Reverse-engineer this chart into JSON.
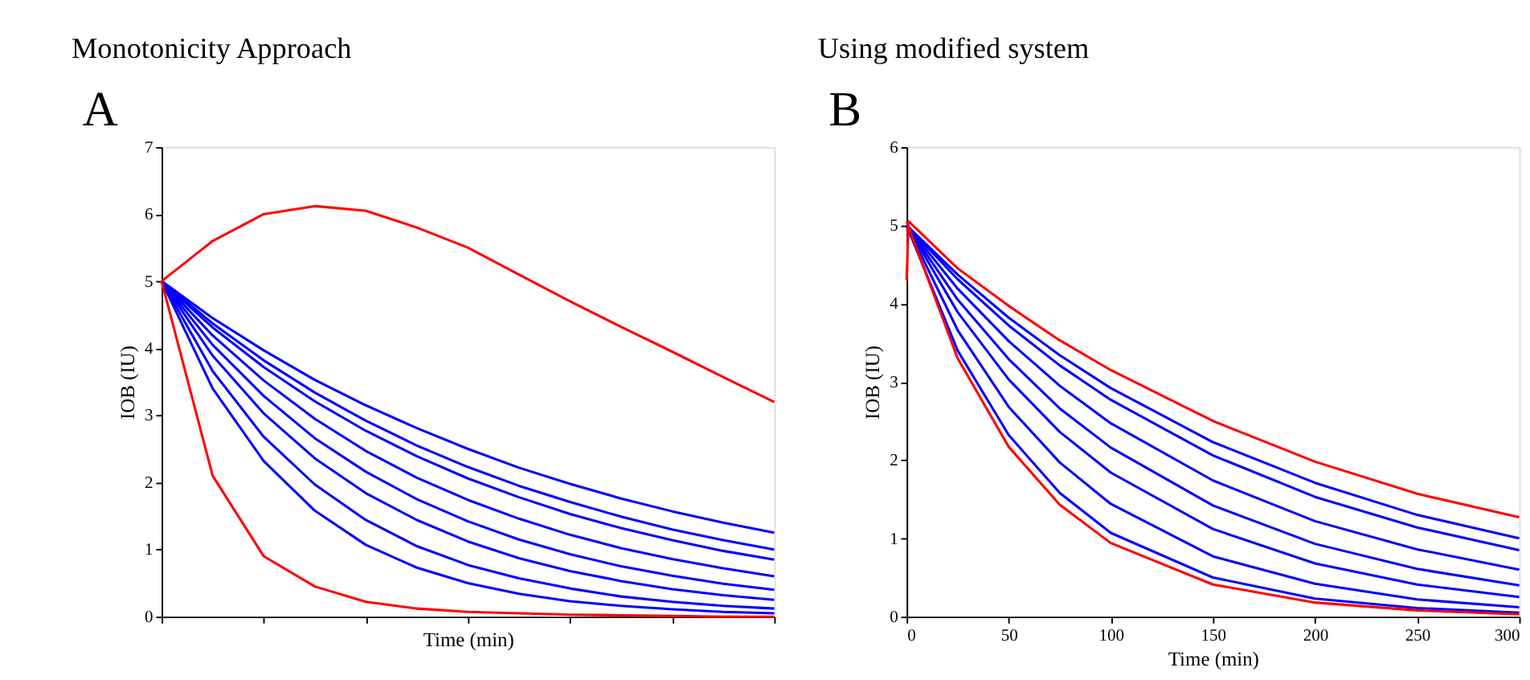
{
  "chart_data": [
    {
      "type": "line",
      "title": "Monotonicity Approach",
      "annotations": [
        "A"
      ],
      "xlabel": "Time (min)",
      "ylabel": "IOB (IU)",
      "categories": [
        null,
        null,
        null,
        null,
        null,
        null,
        null,
        null,
        null,
        null,
        null,
        null,
        null
      ],
      "ylim": [
        0,
        7
      ],
      "yticks": [
        0,
        1,
        2,
        3,
        4,
        5,
        6,
        7
      ],
      "tick_labels": "y",
      "grid": false,
      "line_style": "solid",
      "marker": "none",
      "series": [
        {
          "color": "#0000ff",
          "values": [
            5,
            4.45,
            3.97,
            3.53,
            3.15,
            2.81,
            2.5,
            2.22,
            1.98,
            1.76,
            1.57,
            1.4,
            1.25
          ]
        },
        {
          "color": "#0000ff",
          "values": [
            5,
            4.37,
            3.82,
            3.34,
            2.92,
            2.55,
            2.23,
            1.95,
            1.71,
            1.49,
            1.3,
            1.14,
            1.0
          ]
        },
        {
          "color": "#0000ff",
          "values": [
            5,
            4.31,
            3.72,
            3.21,
            2.77,
            2.39,
            2.06,
            1.78,
            1.53,
            1.32,
            1.14,
            0.98,
            0.85
          ]
        },
        {
          "color": "#0000ff",
          "values": [
            5,
            4.19,
            3.52,
            2.95,
            2.47,
            2.07,
            1.74,
            1.46,
            1.22,
            1.02,
            0.86,
            0.72,
            0.6
          ]
        },
        {
          "color": "#0000ff",
          "values": [
            5,
            4.05,
            3.29,
            2.66,
            2.16,
            1.75,
            1.42,
            1.15,
            0.93,
            0.75,
            0.61,
            0.49,
            0.4
          ]
        },
        {
          "color": "#0000ff",
          "values": [
            5,
            3.89,
            3.03,
            2.36,
            1.84,
            1.44,
            1.12,
            0.87,
            0.68,
            0.53,
            0.41,
            0.32,
            0.25
          ]
        },
        {
          "color": "#0000ff",
          "values": [
            5,
            3.66,
            2.68,
            1.97,
            1.44,
            1.05,
            0.77,
            0.57,
            0.42,
            0.3,
            0.22,
            0.16,
            0.12
          ]
        },
        {
          "color": "#0000ff",
          "values": [
            5,
            3.4,
            2.32,
            1.58,
            1.07,
            0.73,
            0.5,
            0.34,
            0.23,
            0.16,
            0.11,
            0.07,
            0.05
          ]
        },
        {
          "color": "#ff0000",
          "values": [
            5,
            5.6,
            6.0,
            6.12,
            6.05,
            5.8,
            5.5,
            5.1,
            4.7,
            4.32,
            3.95,
            3.57,
            3.2
          ]
        },
        {
          "color": "#ff0000",
          "values": [
            5,
            2.1,
            0.9,
            0.45,
            0.22,
            0.12,
            0.07,
            0.05,
            0.03,
            0.02,
            0.01,
            0.0,
            0.0
          ]
        }
      ]
    },
    {
      "type": "line",
      "title": "Using modified system",
      "annotations": [
        "B"
      ],
      "xlabel": "Time (min)",
      "ylabel": "IOB (IU)",
      "xlim": [
        0,
        300
      ],
      "xticks": [
        0,
        50,
        100,
        150,
        200,
        250,
        300
      ],
      "ylim": [
        0,
        6
      ],
      "yticks": [
        0,
        1,
        2,
        3,
        4,
        5,
        6
      ],
      "grid": false,
      "line_style": "solid",
      "marker": "none",
      "series": [
        {
          "color": "#0000ff",
          "x": [
            0,
            25,
            50,
            75,
            100,
            150,
            200,
            250,
            300
          ],
          "values": [
            5,
            4.37,
            3.82,
            3.34,
            2.92,
            2.23,
            1.71,
            1.3,
            1.0
          ]
        },
        {
          "color": "#0000ff",
          "x": [
            0,
            25,
            50,
            75,
            100,
            150,
            200,
            250,
            300
          ],
          "values": [
            5,
            4.31,
            3.72,
            3.21,
            2.77,
            2.06,
            1.53,
            1.14,
            0.85
          ]
        },
        {
          "color": "#0000ff",
          "x": [
            0,
            25,
            50,
            75,
            100,
            150,
            200,
            250,
            300
          ],
          "values": [
            5,
            4.19,
            3.52,
            2.95,
            2.47,
            1.74,
            1.22,
            0.86,
            0.6
          ]
        },
        {
          "color": "#0000ff",
          "x": [
            0,
            25,
            50,
            75,
            100,
            150,
            200,
            250,
            300
          ],
          "values": [
            5,
            4.05,
            3.29,
            2.66,
            2.16,
            1.42,
            0.93,
            0.61,
            0.4
          ]
        },
        {
          "color": "#0000ff",
          "x": [
            0,
            25,
            50,
            75,
            100,
            150,
            200,
            250,
            300
          ],
          "values": [
            5,
            3.89,
            3.03,
            2.36,
            1.84,
            1.12,
            0.68,
            0.41,
            0.25
          ]
        },
        {
          "color": "#0000ff",
          "x": [
            0,
            25,
            50,
            75,
            100,
            150,
            200,
            250,
            300
          ],
          "values": [
            5,
            3.66,
            2.68,
            1.97,
            1.44,
            0.77,
            0.42,
            0.22,
            0.12
          ]
        },
        {
          "color": "#0000ff",
          "x": [
            0,
            25,
            50,
            75,
            100,
            150,
            200,
            250,
            300
          ],
          "values": [
            5,
            3.4,
            2.32,
            1.58,
            1.07,
            0.5,
            0.23,
            0.11,
            0.05
          ]
        },
        {
          "color": "#ff0000",
          "x": [
            0,
            1,
            25,
            50,
            75,
            100,
            150,
            200,
            250,
            300
          ],
          "values": [
            4.3,
            5.05,
            4.45,
            3.97,
            3.53,
            3.15,
            2.5,
            1.98,
            1.57,
            1.27
          ]
        },
        {
          "color": "#ff0000",
          "x": [
            0,
            25,
            50,
            75,
            100,
            150,
            200,
            250,
            300
          ],
          "values": [
            5.05,
            3.3,
            2.17,
            1.43,
            0.94,
            0.41,
            0.18,
            0.08,
            0.03
          ]
        }
      ]
    }
  ]
}
